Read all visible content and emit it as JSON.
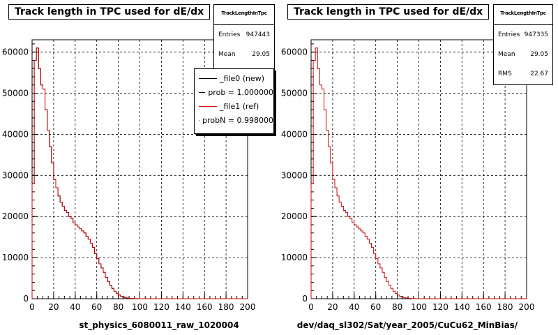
{
  "chart_data": [
    {
      "type": "line",
      "title": "Track length in TPC used for dE/dx",
      "xlabel": "st_physics_6080011_raw_1020004",
      "ylabel": "",
      "xlim": [
        0,
        200
      ],
      "ylim": [
        0,
        63000
      ],
      "x_ticks": [
        "0",
        "20",
        "40",
        "60",
        "80",
        "100",
        "120",
        "140",
        "160",
        "180",
        "200"
      ],
      "y_ticks": [
        "0",
        "10000",
        "20000",
        "30000",
        "40000",
        "50000",
        "60000"
      ],
      "grid": true,
      "stats": {
        "name": "TrackLengthInTpc",
        "rows": [
          {
            "label": "Entries",
            "value": "947443"
          },
          {
            "label": "Mean",
            "value": "29.05"
          }
        ]
      },
      "legend": [
        {
          "label": "_file0 (new)",
          "color": "#000000"
        },
        {
          "label": "prob = 1.000000",
          "color": "#000000"
        },
        {
          "label": "_file1 (ref)",
          "color": "#cc0000"
        },
        {
          "label": "probN = 0.998000",
          "color": "#cc0000"
        }
      ],
      "series": [
        {
          "color": "#000000",
          "x": [
            0,
            2,
            4,
            6,
            8,
            10,
            12,
            14,
            16,
            18,
            20,
            22,
            24,
            26,
            28,
            30,
            32,
            34,
            36,
            38,
            40,
            42,
            44,
            46,
            48,
            50,
            52,
            54,
            56,
            58,
            60,
            62,
            64,
            66,
            68,
            70,
            72,
            74,
            76,
            78,
            80,
            82,
            84,
            86,
            88,
            90,
            92,
            94,
            96,
            98,
            100,
            102,
            104,
            106,
            108,
            110,
            112,
            114,
            116,
            118,
            120,
            200
          ],
          "y": [
            28000,
            58000,
            61000,
            56000,
            52000,
            51000,
            46000,
            41000,
            37000,
            33000,
            29000,
            27000,
            25000,
            23500,
            22500,
            21500,
            21000,
            20000,
            19500,
            18500,
            18000,
            17500,
            17000,
            16500,
            16000,
            15200,
            14500,
            13500,
            12500,
            11000,
            9800,
            8500,
            7500,
            6400,
            5200,
            4200,
            3300,
            2500,
            1800,
            1300,
            900,
            600,
            380,
            240,
            150,
            90,
            50,
            30,
            18,
            10,
            6,
            3,
            2,
            1,
            0,
            0,
            0,
            0,
            0,
            0,
            0,
            0
          ]
        },
        {
          "color": "#cc0000",
          "x": [
            0,
            2,
            4,
            6,
            8,
            10,
            12,
            14,
            16,
            18,
            20,
            22,
            24,
            26,
            28,
            30,
            32,
            34,
            36,
            38,
            40,
            42,
            44,
            46,
            48,
            50,
            52,
            54,
            56,
            58,
            60,
            62,
            64,
            66,
            68,
            70,
            72,
            74,
            76,
            78,
            80,
            82,
            84,
            86,
            88,
            90,
            92,
            94,
            96,
            98,
            100,
            102,
            104,
            106,
            108,
            110,
            112,
            114,
            116,
            118,
            120,
            200
          ],
          "y": [
            28000,
            58000,
            61000,
            56000,
            52000,
            51000,
            46000,
            41000,
            37000,
            33000,
            29000,
            27000,
            25000,
            23500,
            22500,
            21500,
            21000,
            20000,
            19500,
            18500,
            18000,
            17500,
            17000,
            16500,
            16000,
            15200,
            14500,
            13500,
            12500,
            11000,
            9800,
            8500,
            7500,
            6400,
            5200,
            4200,
            3300,
            2500,
            1800,
            1300,
            900,
            600,
            380,
            240,
            150,
            90,
            50,
            30,
            18,
            10,
            6,
            3,
            2,
            1,
            0,
            0,
            0,
            0,
            0,
            0,
            0,
            0
          ]
        }
      ]
    },
    {
      "type": "line",
      "title": "Track length in TPC used for dE/dx",
      "xlabel": "dev/daq_sl302/Sat/year_2005/CuCu62_MinBias/",
      "ylabel": "",
      "xlim": [
        0,
        200
      ],
      "ylim": [
        0,
        63000
      ],
      "x_ticks": [
        "0",
        "20",
        "40",
        "60",
        "80",
        "100",
        "120",
        "140",
        "160",
        "180",
        "200"
      ],
      "y_ticks": [
        "0",
        "10000",
        "20000",
        "30000",
        "40000",
        "50000",
        "60000"
      ],
      "grid": true,
      "stats": {
        "name": "TrackLengthInTpc",
        "rows": [
          {
            "label": "Entries",
            "value": "947335"
          },
          {
            "label": "Mean",
            "value": "29.05"
          },
          {
            "label": "RMS",
            "value": "22.67"
          }
        ]
      },
      "series": [
        {
          "color": "#cc0000",
          "x": [
            0,
            2,
            4,
            6,
            8,
            10,
            12,
            14,
            16,
            18,
            20,
            22,
            24,
            26,
            28,
            30,
            32,
            34,
            36,
            38,
            40,
            42,
            44,
            46,
            48,
            50,
            52,
            54,
            56,
            58,
            60,
            62,
            64,
            66,
            68,
            70,
            72,
            74,
            76,
            78,
            80,
            82,
            84,
            86,
            88,
            90,
            92,
            94,
            96,
            98,
            100,
            102,
            104,
            106,
            108,
            110,
            112,
            114,
            116,
            118,
            120,
            200
          ],
          "y": [
            28000,
            58000,
            61000,
            56000,
            52000,
            51000,
            46000,
            41000,
            37000,
            33000,
            29000,
            27000,
            25000,
            23500,
            22500,
            21500,
            21000,
            20000,
            19500,
            18500,
            18000,
            17500,
            17000,
            16500,
            16000,
            15200,
            14500,
            13500,
            12500,
            11000,
            9800,
            8500,
            7500,
            6400,
            5200,
            4200,
            3300,
            2500,
            1800,
            1300,
            900,
            600,
            380,
            240,
            150,
            90,
            50,
            30,
            18,
            10,
            6,
            3,
            2,
            1,
            0,
            0,
            0,
            0,
            0,
            0,
            0,
            0
          ]
        }
      ]
    }
  ]
}
